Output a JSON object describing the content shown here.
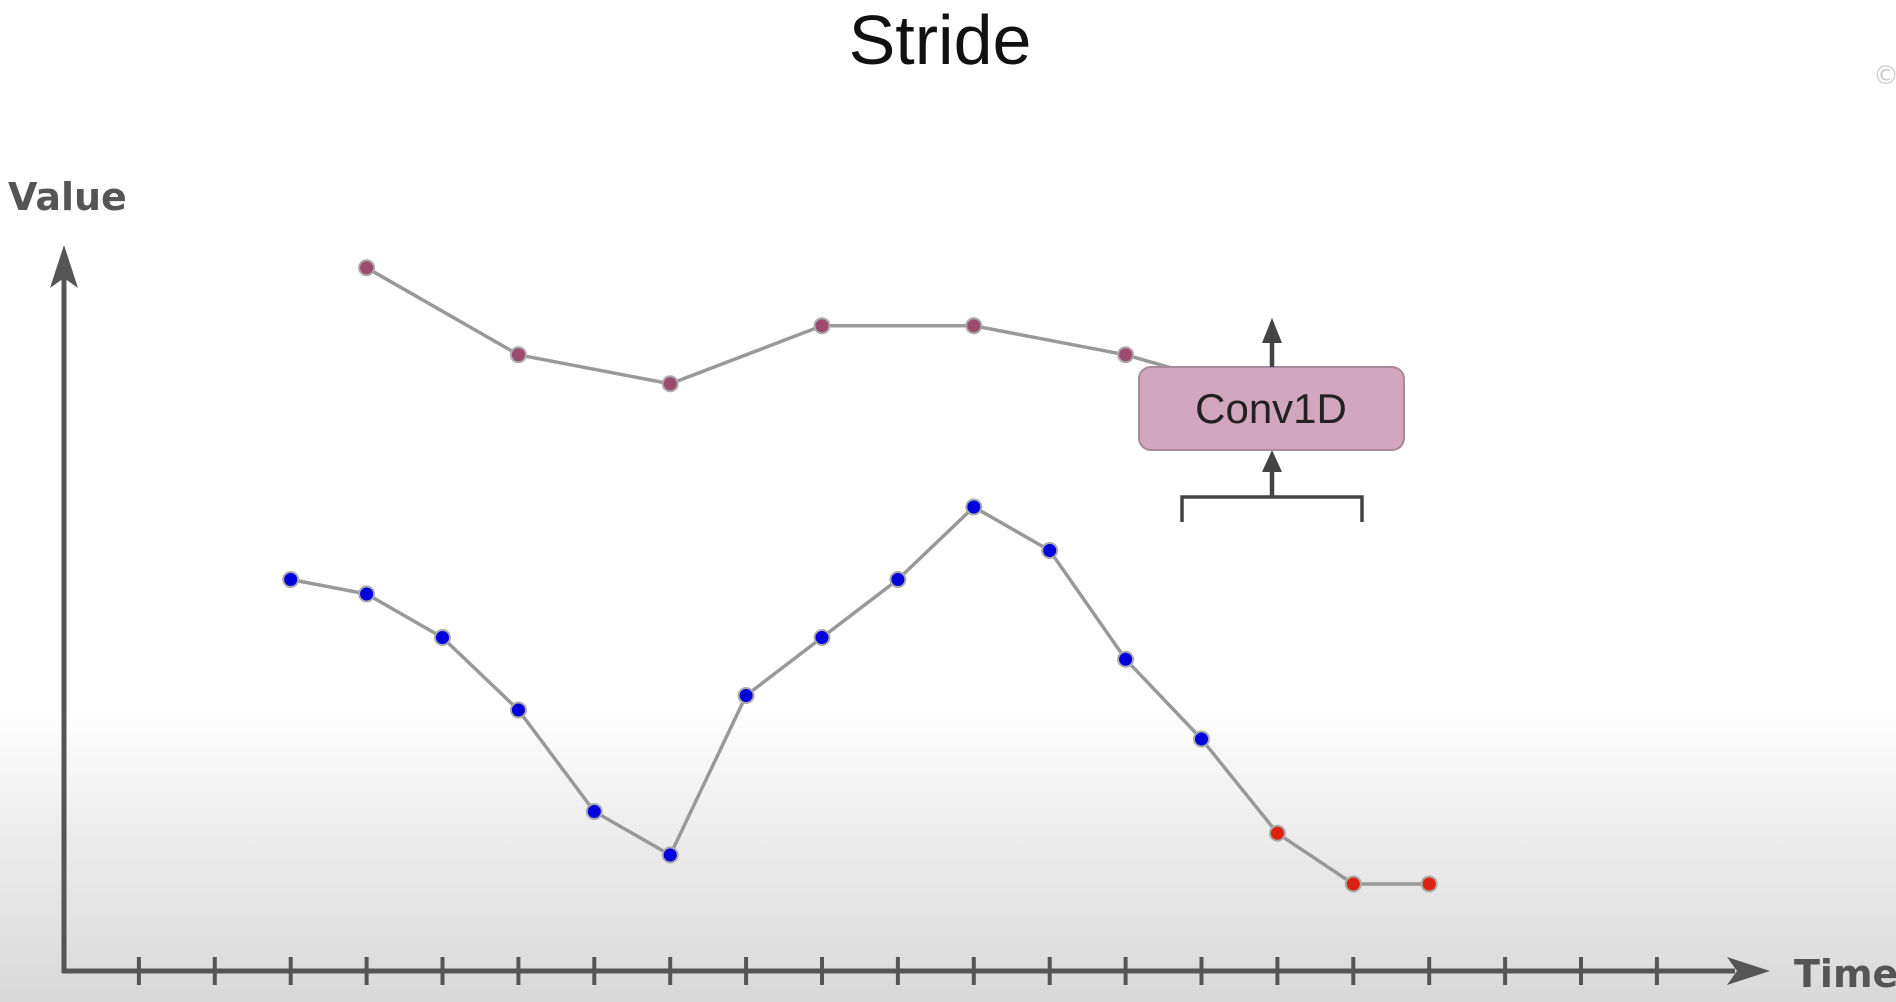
{
  "title": "Stride",
  "corner_mark": "©",
  "axes": {
    "y_label": "Value",
    "x_label": "Time",
    "tick_count": 21
  },
  "conv_block": {
    "label": "Conv1D"
  },
  "colors": {
    "axis": "#555555",
    "line": "#999999",
    "input_point": "#0000dd",
    "window_point": "#dd2211",
    "output_point": "#9c4a6e",
    "box_fill": "#d2a6be",
    "box_border": "#a88a9a",
    "arrow": "#444444"
  },
  "input_series": {
    "t": [
      3,
      4,
      5,
      6,
      7,
      8,
      9,
      10,
      11,
      12,
      13,
      14,
      15,
      16,
      17,
      18
    ],
    "v": [
      5.4,
      5.2,
      4.6,
      3.6,
      2.2,
      1.6,
      3.8,
      4.6,
      5.4,
      6.4,
      5.8,
      4.3,
      3.2,
      1.9,
      1.2,
      1.2
    ],
    "highlighted_indices": [
      13,
      14,
      15
    ]
  },
  "output_series": {
    "t": [
      4,
      6,
      8,
      10,
      12,
      14,
      16
    ],
    "v": [
      9.7,
      8.5,
      8.1,
      8.9,
      8.9,
      8.5,
      7.9
    ]
  }
}
